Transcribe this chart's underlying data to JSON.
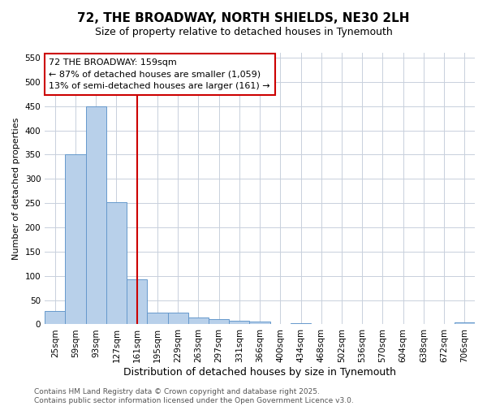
{
  "title_line1": "72, THE BROADWAY, NORTH SHIELDS, NE30 2LH",
  "title_line2": "Size of property relative to detached houses in Tynemouth",
  "xlabel": "Distribution of detached houses by size in Tynemouth",
  "ylabel": "Number of detached properties",
  "categories": [
    "25sqm",
    "59sqm",
    "93sqm",
    "127sqm",
    "161sqm",
    "195sqm",
    "229sqm",
    "263sqm",
    "297sqm",
    "331sqm",
    "366sqm",
    "400sqm",
    "434sqm",
    "468sqm",
    "502sqm",
    "536sqm",
    "570sqm",
    "604sqm",
    "638sqm",
    "672sqm",
    "706sqm"
  ],
  "values": [
    28,
    350,
    449,
    252,
    93,
    24,
    24,
    14,
    10,
    7,
    5,
    0,
    3,
    0,
    0,
    0,
    0,
    0,
    0,
    0,
    4
  ],
  "bar_color": "#b8d0ea",
  "bar_edge_color": "#6699cc",
  "vline_x_index": 4,
  "vline_color": "#cc0000",
  "ylim": [
    0,
    560
  ],
  "yticks": [
    0,
    50,
    100,
    150,
    200,
    250,
    300,
    350,
    400,
    450,
    500,
    550
  ],
  "annotation_title": "72 THE BROADWAY: 159sqm",
  "annotation_line1": "← 87% of detached houses are smaller (1,059)",
  "annotation_line2": "13% of semi-detached houses are larger (161) →",
  "annotation_box_color": "#cc0000",
  "annotation_text_color": "#000000",
  "annotation_bg_color": "#ffffff",
  "footer_line1": "Contains HM Land Registry data © Crown copyright and database right 2025.",
  "footer_line2": "Contains public sector information licensed under the Open Government Licence v3.0.",
  "bg_color": "#ffffff",
  "grid_color": "#c8d0dc",
  "title1_fontsize": 11,
  "title2_fontsize": 9,
  "xlabel_fontsize": 9,
  "ylabel_fontsize": 8,
  "tick_fontsize": 7.5,
  "footer_fontsize": 6.5,
  "ann_fontsize": 8
}
